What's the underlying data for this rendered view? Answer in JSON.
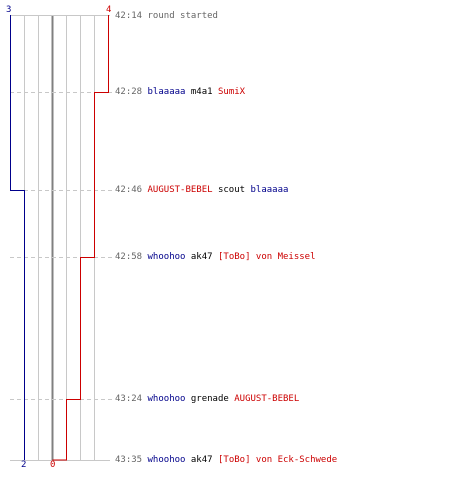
{
  "colors": {
    "ct": "#00008b",
    "t": "#cc0000",
    "time": "#666666",
    "grid": "#c8c8c8",
    "zero_line": "#808080",
    "dashed": "#c8c8c8"
  },
  "counters": {
    "ct_start": "3",
    "t_start": "4",
    "ct_end": "2",
    "t_end": "0"
  },
  "events": [
    {
      "time": "42:14",
      "note": "round started"
    },
    {
      "time": "42:28",
      "killer": "blaaaaa",
      "killer_team": "ct",
      "weapon": "m4a1",
      "victim": "SumiX",
      "victim_team": "t"
    },
    {
      "time": "42:46",
      "killer": "AUGUST-BEBEL",
      "killer_team": "t",
      "weapon": "scout",
      "victim": "blaaaaa",
      "victim_team": "ct"
    },
    {
      "time": "42:58",
      "killer": "whoohoo",
      "killer_team": "ct",
      "weapon": "ak47",
      "victim": "[ToBo] von Meissel",
      "victim_team": "t"
    },
    {
      "time": "43:24",
      "killer": "whoohoo",
      "killer_team": "ct",
      "weapon": "grenade",
      "victim": "AUGUST-BEBEL",
      "victim_team": "t"
    },
    {
      "time": "43:35",
      "killer": "whoohoo",
      "killer_team": "ct",
      "weapon": "ak47",
      "victim": "[ToBo] von Eck-Schwede",
      "victim_team": "t"
    }
  ]
}
